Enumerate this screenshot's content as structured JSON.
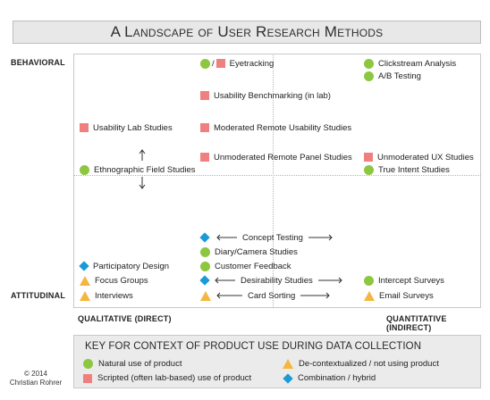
{
  "title": "A Landscape of User Research Methods",
  "axes": {
    "top_left": "BEHAVIORAL",
    "bottom_left": "ATTITUDINAL",
    "bottom_start": "QUALITATIVE (DIRECT)",
    "bottom_end": "QUANTITATIVE (INDIRECT)"
  },
  "marker_colors": {
    "natural": "#8dc63f",
    "scripted": "#f08080",
    "decontextualized": "#f4b63f",
    "combination": "#1a9ad6"
  },
  "methods": {
    "eyetracking": "Eyetracking",
    "eyetracking_sep": "/",
    "clickstream": "Clickstream Analysis",
    "ab_testing": "A/B Testing",
    "usability_benchmarking": "Usability Benchmarking (in lab)",
    "usability_lab": "Usability Lab Studies",
    "moderated_remote": "Moderated Remote Usability Studies",
    "unmoderated_remote_panel": "Unmoderated Remote Panel Studies",
    "unmoderated_ux": "Unmoderated UX Studies",
    "ethnographic": "Ethnographic Field Studies",
    "true_intent": "True Intent Studies",
    "concept_testing": "Concept Testing",
    "diary_camera": "Diary/Camera Studies",
    "customer_feedback": "Customer Feedback",
    "participatory_design": "Participatory Design",
    "focus_groups": "Focus Groups",
    "desirability": "Desirability Studies",
    "intercept_surveys": "Intercept Surveys",
    "interviews": "Interviews",
    "card_sorting": "Card Sorting",
    "email_surveys": "Email Surveys"
  },
  "legend": {
    "title": "KEY FOR CONTEXT OF PRODUCT USE DURING DATA COLLECTION",
    "natural": "Natural use of product",
    "scripted": "Scripted (often lab-based) use of product",
    "decontextualized": "De-contextualized / not using product",
    "combination": "Combination / hybrid"
  },
  "copyright": {
    "line1": "© 2014",
    "line2": "Christian Rohrer"
  }
}
